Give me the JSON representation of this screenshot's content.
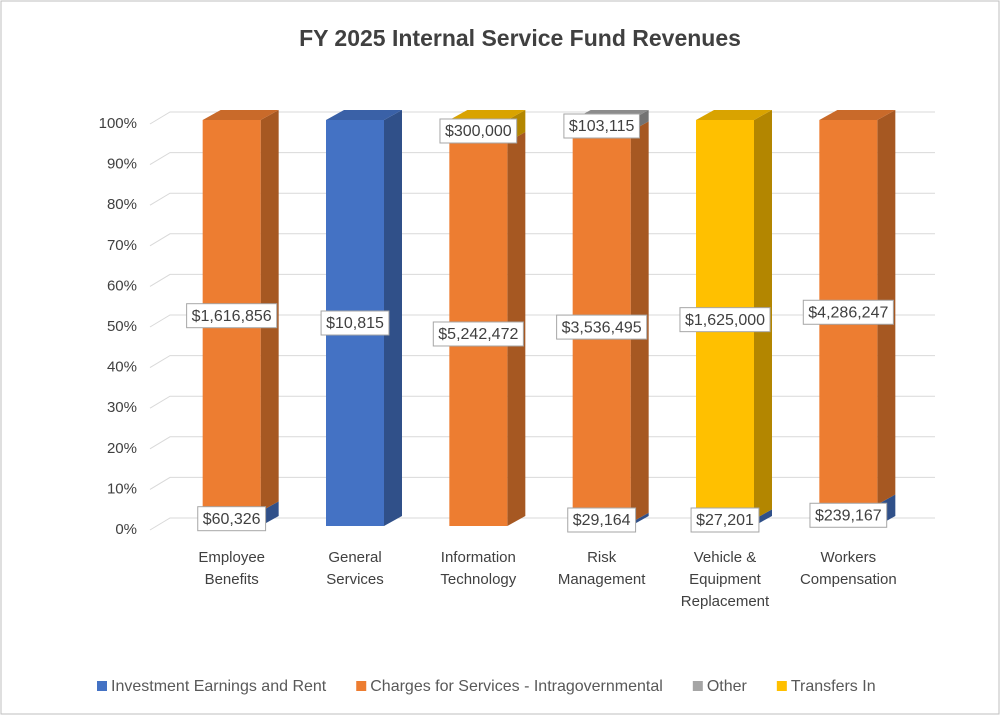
{
  "chart_data": {
    "type": "bar",
    "stacking": "percent",
    "title": "FY 2025 Internal Service Fund Revenues",
    "categories": [
      "Employee Benefits",
      "General Services",
      "Information Technology",
      "Risk Management",
      "Vehicle & Equipment Replacement",
      "Workers Compensation"
    ],
    "series": [
      {
        "name": "Investment Earnings and Rent",
        "color": "#4472c4",
        "values": [
          60326,
          10815,
          null,
          29164,
          27201,
          239167
        ],
        "value_labels": [
          "$60,326",
          "$10,815",
          null,
          "$29,164",
          "$27,201",
          "$239,167"
        ]
      },
      {
        "name": "Charges for Services - Intragovernmental",
        "color": "#ed7d31",
        "values": [
          1616856,
          null,
          5242472,
          3536495,
          null,
          4286247
        ],
        "value_labels": [
          "$1,616,856",
          null,
          "$5,242,472",
          "$3,536,495",
          null,
          "$4,286,247"
        ]
      },
      {
        "name": "Other",
        "color": "#a5a5a5",
        "values": [
          null,
          null,
          null,
          103115,
          null,
          null
        ],
        "value_labels": [
          null,
          null,
          null,
          "$103,115",
          null,
          null
        ]
      },
      {
        "name": "Transfers In",
        "color": "#ffc000",
        "values": [
          null,
          null,
          300000,
          null,
          1625000,
          null
        ],
        "value_labels": [
          null,
          null,
          "$300,000",
          null,
          "$1,625,000",
          null
        ]
      }
    ],
    "ylim": [
      0,
      100
    ],
    "yticks": [
      {
        "value": 0,
        "label": "0%"
      },
      {
        "value": 10,
        "label": "10%"
      },
      {
        "value": 20,
        "label": "20%"
      },
      {
        "value": 30,
        "label": "30%"
      },
      {
        "value": 40,
        "label": "40%"
      },
      {
        "value": 50,
        "label": "50%"
      },
      {
        "value": 60,
        "label": "60%"
      },
      {
        "value": 70,
        "label": "70%"
      },
      {
        "value": 80,
        "label": "80%"
      },
      {
        "value": 90,
        "label": "90%"
      },
      {
        "value": 100,
        "label": "100%"
      }
    ],
    "grid": true,
    "legend": "bottom"
  }
}
